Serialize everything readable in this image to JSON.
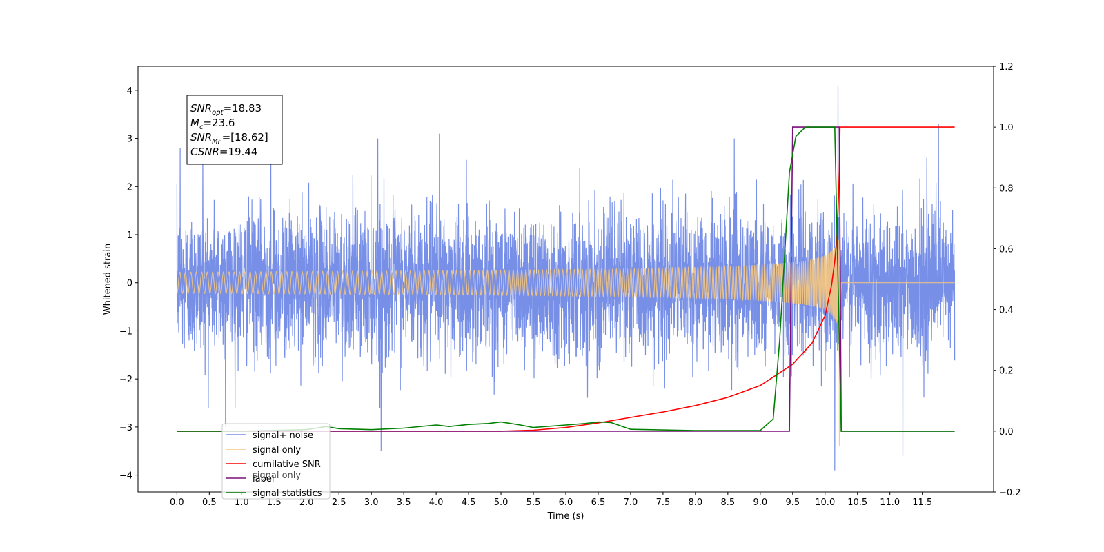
{
  "chart_data": {
    "type": "line",
    "title": "",
    "xlabel": "Time (s)",
    "ylabel": "Whitened strain",
    "y2label": "",
    "xlim": [
      -0.6,
      12.6
    ],
    "ylim": [
      -4.35,
      4.5
    ],
    "y2lim": [
      -0.2,
      1.2
    ],
    "x_ticks": [
      "0.0",
      "0.5",
      "1.0",
      "1.5",
      "2.0",
      "2.5",
      "3.0",
      "3.5",
      "4.0",
      "4.5",
      "5.0",
      "5.5",
      "6.0",
      "6.5",
      "7.0",
      "7.5",
      "8.0",
      "8.5",
      "9.0",
      "9.5",
      "10.0",
      "10.5",
      "11.0",
      "11.5"
    ],
    "y_ticks": [
      "4",
      "3",
      "2",
      "1",
      "0",
      "−1",
      "−2",
      "−3",
      "−4"
    ],
    "y2_ticks": [
      "1.2",
      "1.0",
      "0.8",
      "0.6",
      "0.4",
      "0.2",
      "0.0",
      "−0.2"
    ],
    "grid": false,
    "legend_placement": "lower-left",
    "annotation": {
      "lines": [
        {
          "sym": "SNR",
          "sub": "opt",
          "value": "=18.83"
        },
        {
          "sym": "M",
          "sub": "c",
          "value": "=23.6"
        },
        {
          "sym": "SNR",
          "sub": "MF",
          "value": "=[18.62]"
        },
        {
          "sym": "CSNR",
          "sub": "",
          "value": "=19.44"
        }
      ]
    },
    "series": [
      {
        "name": "signal+ noise",
        "axis": "left",
        "color": "#778fe6",
        "kind": "noise",
        "x_range": [
          0.0,
          12.0
        ],
        "typical_amplitude": 1.2,
        "peaks": [
          {
            "x": 0.05,
            "y": 2.8
          },
          {
            "x": 0.4,
            "y": 2.6
          },
          {
            "x": 0.75,
            "y": -3.0
          },
          {
            "x": 1.45,
            "y": 2.6
          },
          {
            "x": 3.1,
            "y": 3.0
          },
          {
            "x": 3.15,
            "y": -3.5
          },
          {
            "x": 4.05,
            "y": 3.1
          },
          {
            "x": 8.6,
            "y": 3.0
          },
          {
            "x": 10.15,
            "y": 4.1
          },
          {
            "x": 10.2,
            "y": 4.1
          },
          {
            "x": 10.15,
            "y": -3.9
          },
          {
            "x": 11.2,
            "y": -3.6
          },
          {
            "x": 11.75,
            "y": 3.3
          }
        ]
      },
      {
        "name": "signal only",
        "axis": "left",
        "color": "#f5c77e",
        "kind": "chirp",
        "x_range": [
          0.0,
          12.0
        ],
        "merger_time": 10.22,
        "peak_amplitude": 3.4
      },
      {
        "name": "cumilative SNR",
        "axis": "right",
        "color": "#ff0000",
        "x": [
          0.0,
          5.0,
          5.5,
          6.0,
          6.5,
          7.0,
          7.5,
          8.0,
          8.5,
          9.0,
          9.5,
          9.8,
          10.0,
          10.1,
          10.15,
          10.18,
          10.2,
          10.22,
          10.23,
          12.0
        ],
        "values": [
          0.0,
          0.0,
          0.003,
          0.012,
          0.027,
          0.045,
          0.063,
          0.084,
          0.111,
          0.15,
          0.22,
          0.29,
          0.38,
          0.48,
          0.56,
          0.63,
          0.72,
          0.85,
          1.0,
          1.0
        ]
      },
      {
        "name": "label",
        "axis": "right",
        "color": "#7b0f7b",
        "x": [
          0.0,
          9.45,
          9.5,
          10.22,
          10.25,
          12.0
        ],
        "values": [
          0.0,
          0.0,
          1.0,
          1.0,
          0.0,
          0.0
        ]
      },
      {
        "name": "signal statistics",
        "axis": "right",
        "color": "#008000",
        "x": [
          0.0,
          1.0,
          2.0,
          2.3,
          2.5,
          3.0,
          3.5,
          4.0,
          4.2,
          4.5,
          4.8,
          5.0,
          5.3,
          5.5,
          6.0,
          6.3,
          6.5,
          6.7,
          7.0,
          8.0,
          9.0,
          9.2,
          9.3,
          9.45,
          9.55,
          9.7,
          10.0,
          10.15,
          10.2,
          10.25,
          12.0
        ],
        "values": [
          0.0,
          0.0,
          0.005,
          0.015,
          0.008,
          0.005,
          0.01,
          0.02,
          0.015,
          0.022,
          0.025,
          0.03,
          0.02,
          0.012,
          0.02,
          0.025,
          0.03,
          0.028,
          0.006,
          0.002,
          0.002,
          0.04,
          0.3,
          0.85,
          0.97,
          1.0,
          1.0,
          1.0,
          0.5,
          0.0,
          0.0
        ]
      }
    ],
    "legend": [
      {
        "label": "signal+ noise",
        "color": "#778fe6"
      },
      {
        "label": "signal only",
        "color": "#f5c77e"
      },
      {
        "label": "cumilative SNR",
        "color": "#ff0000"
      },
      {
        "label": "label",
        "color": "#7b0f7b"
      },
      {
        "label": "signal statistics",
        "color": "#008000"
      }
    ],
    "hidden_legend_text": [
      {
        "text": "signal only"
      }
    ]
  }
}
